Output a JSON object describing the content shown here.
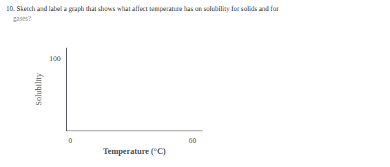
{
  "chart_data": {
    "type": "line",
    "title": "10. Sketch and label a graph that shows what affect temperature has on solubility for solids and for",
    "subtitle": "    gases?",
    "xlabel": "Temperature (°C)",
    "ylabel": "Solubility",
    "xlim": [
      -2,
      65
    ],
    "xticks": [
      0,
      60
    ],
    "ylim": [
      -5,
      115
    ],
    "yticks": [
      100
    ],
    "grid": false
  }
}
